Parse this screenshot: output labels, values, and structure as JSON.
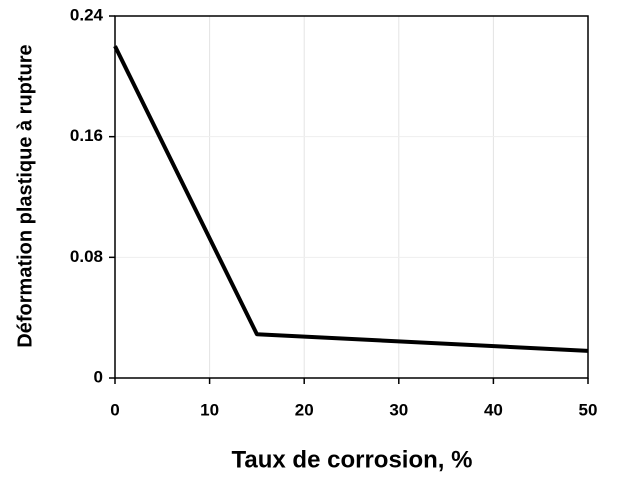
{
  "chart_data": {
    "type": "line",
    "x_label": "Taux de corrosion, %",
    "y_label": "Déformation plastique à rupture",
    "x": [
      0,
      15,
      50
    ],
    "values": [
      0.22,
      0.029,
      0.018
    ],
    "color": "#000000",
    "xlim": [
      0,
      50
    ],
    "xticks": [
      0,
      10,
      20,
      30,
      40,
      50
    ],
    "ylim": [
      0,
      0.24
    ],
    "yticks": [
      0,
      0.08,
      0.16,
      0.24
    ],
    "grid": true
  }
}
